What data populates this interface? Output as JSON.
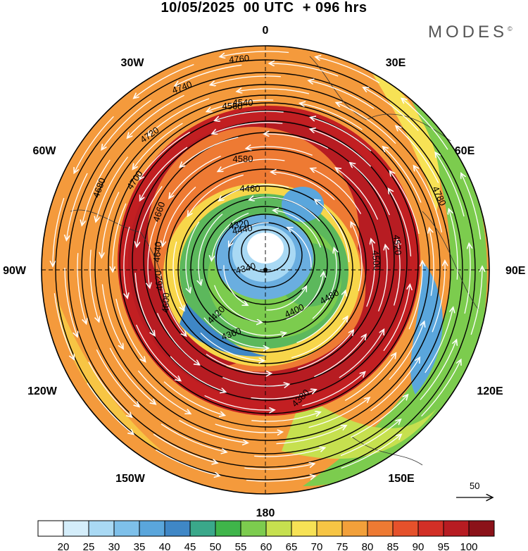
{
  "title": "10/05/2025  00 UTC  + 096 hrs",
  "brand": {
    "name": "MODES",
    "mark": "©"
  },
  "map": {
    "projection": "north polar stereographic",
    "longitude_labels": [
      "0",
      "30E",
      "60E",
      "90E",
      "120E",
      "150E",
      "180",
      "150W",
      "120W",
      "90W",
      "60W",
      "30W"
    ],
    "contour_labels": [
      "4760",
      "4740",
      "4720",
      "4700",
      "4680",
      "4660",
      "4640",
      "4620",
      "4600",
      "4580",
      "4560",
      "4540",
      "4520",
      "4500",
      "4480",
      "4460",
      "4440",
      "4420",
      "4400",
      "4380",
      "4360",
      "4340",
      "4320",
      "4780"
    ],
    "colors": {
      "outer": "#f49a3c",
      "jet": "#c21f22",
      "mid": "#f7d64a",
      "inner": "#5cb85c",
      "core": "#6aaee0",
      "center": "#ffffff"
    }
  },
  "wind_reference": {
    "value": "50",
    "icon": "arrow-right-icon"
  },
  "colorbar": {
    "ticks": [
      "20",
      "25",
      "30",
      "35",
      "40",
      "45",
      "50",
      "55",
      "60",
      "65",
      "70",
      "75",
      "80",
      "85",
      "90",
      "95",
      "100"
    ],
    "colors": [
      "#ffffff",
      "#d4edfa",
      "#a9d9f4",
      "#7ec0ea",
      "#5aa6dc",
      "#3f87c6",
      "#3aa88a",
      "#3fb54a",
      "#7ccc4e",
      "#c6e04f",
      "#f7e255",
      "#f7c544",
      "#f2a03a",
      "#ee7a33",
      "#e5512b",
      "#d22f26",
      "#b71c22",
      "#8b1219"
    ]
  }
}
